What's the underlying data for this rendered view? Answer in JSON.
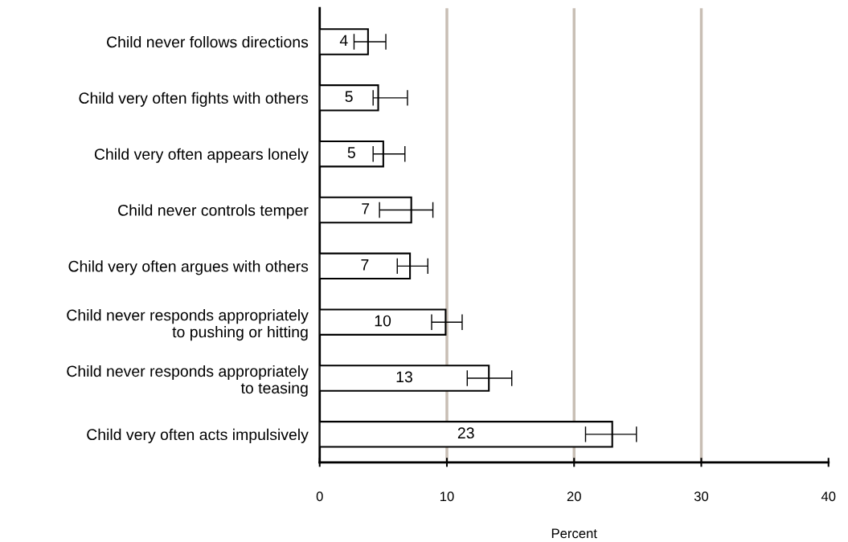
{
  "chart_data": {
    "type": "bar",
    "orientation": "horizontal",
    "xlabel": "Percent",
    "categories": [
      "Child never follows directions",
      "Child very often fights with others",
      "Child very often appears lonely",
      "Child never controls temper",
      "Child very often argues with others",
      "Child never responds appropriately\nto pushing or hitting",
      "Child never responds appropriately\nto teasing",
      "Child very often acts impulsively"
    ],
    "values": [
      3.8,
      4.6,
      5.0,
      7.2,
      7.1,
      9.9,
      13.3,
      23.0
    ],
    "value_labels": [
      "4",
      "5",
      "5",
      "7",
      "7",
      "10",
      "13",
      "23"
    ],
    "errors": [
      [
        2.7,
        5.2
      ],
      [
        4.2,
        6.9
      ],
      [
        4.2,
        6.7
      ],
      [
        4.7,
        8.9
      ],
      [
        6.1,
        8.5
      ],
      [
        8.8,
        11.2
      ],
      [
        11.6,
        15.1
      ],
      [
        20.9,
        24.9
      ]
    ],
    "color": "#ffffff",
    "xlim": [
      0,
      40
    ],
    "xticks": [
      0,
      10,
      20,
      30,
      40
    ],
    "grid": "x"
  }
}
